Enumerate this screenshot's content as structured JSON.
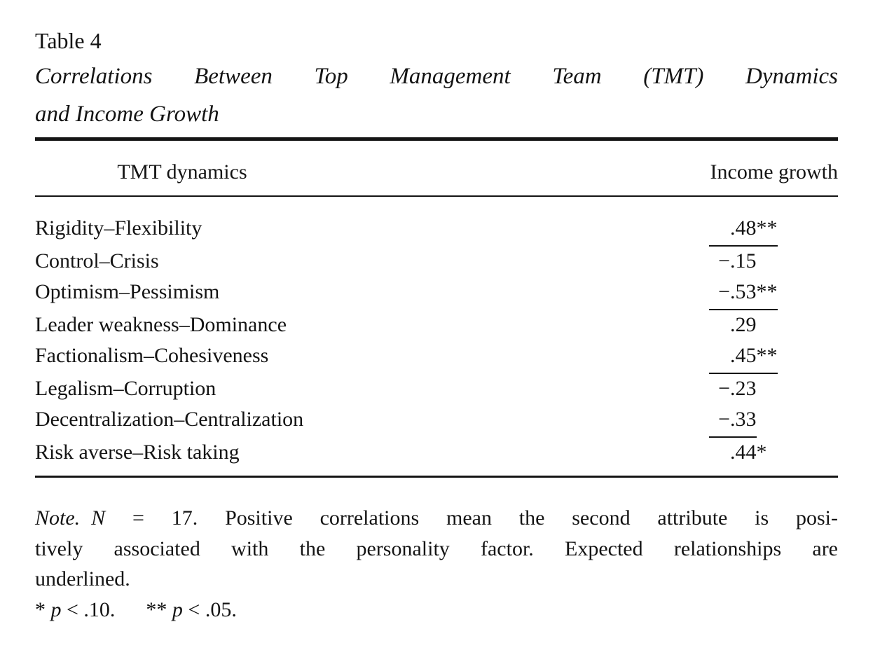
{
  "page": {
    "background": "#ffffff",
    "text_color": "#141414"
  },
  "table_label": "Table 4",
  "caption": {
    "full": "Correlations Between Top Management Team (TMT) Dynamics and Income Growth",
    "lines": [
      "Correlations Between Top Management Team (TMT) Dynamics",
      "and Income Growth"
    ]
  },
  "table": {
    "columns": [
      "TMT dynamics",
      "Income growth"
    ],
    "rows": [
      {
        "label": "Rigidity–Flexibility",
        "sign": "",
        "num": ".48",
        "stars": "**",
        "underlined": true,
        "value_display": ".48**"
      },
      {
        "label": "Control–Crisis",
        "sign": "−",
        "num": ".15",
        "stars": "",
        "underlined": false,
        "value_display": "−.15"
      },
      {
        "label": "Optimism–Pessimism",
        "sign": "−",
        "num": ".53",
        "stars": "**",
        "underlined": true,
        "value_display": "−.53**"
      },
      {
        "label": "Leader weakness–Dominance",
        "sign": "",
        "num": ".29",
        "stars": "",
        "underlined": false,
        "value_display": ".29"
      },
      {
        "label": "Factionalism–Cohesiveness",
        "sign": "",
        "num": ".45",
        "stars": "**",
        "underlined": true,
        "value_display": ".45**"
      },
      {
        "label": "Legalism–Corruption",
        "sign": "−",
        "num": ".23",
        "stars": "",
        "underlined": false,
        "value_display": "−.23"
      },
      {
        "label": "Decentralization–Centralization",
        "sign": "−",
        "num": ".33",
        "stars": "",
        "underlined": true,
        "value_display": "−.33"
      },
      {
        "label": "Risk averse–Risk taking",
        "sign": "",
        "num": ".44",
        "stars": "*",
        "underlined": false,
        "value_display": ".44*"
      }
    ],
    "sample_size": "N = 17"
  },
  "note": {
    "label": "Note.",
    "full": "N = 17. Positive correlations mean the second attribute is positively associated with the personality factor. Expected relationships are underlined.",
    "line1_var": "N",
    "line1_rest": "= 17. Positive correlations mean the second attribute is posi-",
    "line2": "tively associated with the personality factor. Expected relationships are",
    "line3": "underlined."
  },
  "significance": {
    "first": {
      "stars": "*",
      "var": "p",
      "rest": "< .10."
    },
    "second": {
      "stars": "**",
      "var": "p",
      "rest": "< .05."
    }
  }
}
